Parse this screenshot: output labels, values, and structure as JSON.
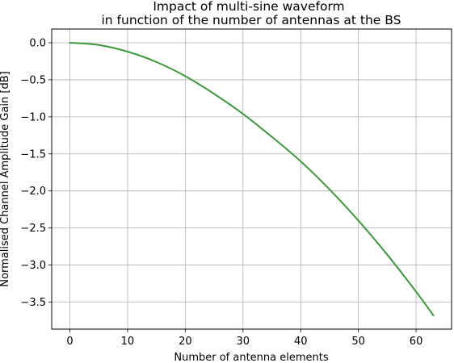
{
  "chart_data": {
    "type": "line",
    "title_line1": "Impact of multi-sine waveform",
    "title_line2": "in function of the number of antennas at the BS",
    "xlabel": "Number of antenna elements",
    "ylabel": "Normalised Channel Amplitude Gain [dB]",
    "xlim": [
      -3.15,
      66.15
    ],
    "ylim": [
      -3.865,
      0.185
    ],
    "xticks": [
      0,
      10,
      20,
      30,
      40,
      50,
      60
    ],
    "yticks": [
      0.0,
      -0.5,
      -1.0,
      -1.5,
      -2.0,
      -2.5,
      -3.0,
      -3.5
    ],
    "xtick_labels": [
      "0",
      "10",
      "20",
      "30",
      "40",
      "50",
      "60"
    ],
    "ytick_labels": [
      "0.0",
      "−0.5",
      "−1.0",
      "−1.5",
      "−2.0",
      "−2.5",
      "−3.0",
      "−3.5"
    ],
    "grid": true,
    "series": [
      {
        "color": "#3c9a3c",
        "x": [
          0,
          5,
          10,
          15,
          20,
          25,
          30,
          35,
          40,
          45,
          50,
          55,
          60,
          63
        ],
        "y": [
          0.0,
          -0.03,
          -0.12,
          -0.26,
          -0.45,
          -0.69,
          -0.96,
          -1.27,
          -1.6,
          -1.98,
          -2.4,
          -2.86,
          -3.36,
          -3.68
        ]
      }
    ]
  }
}
